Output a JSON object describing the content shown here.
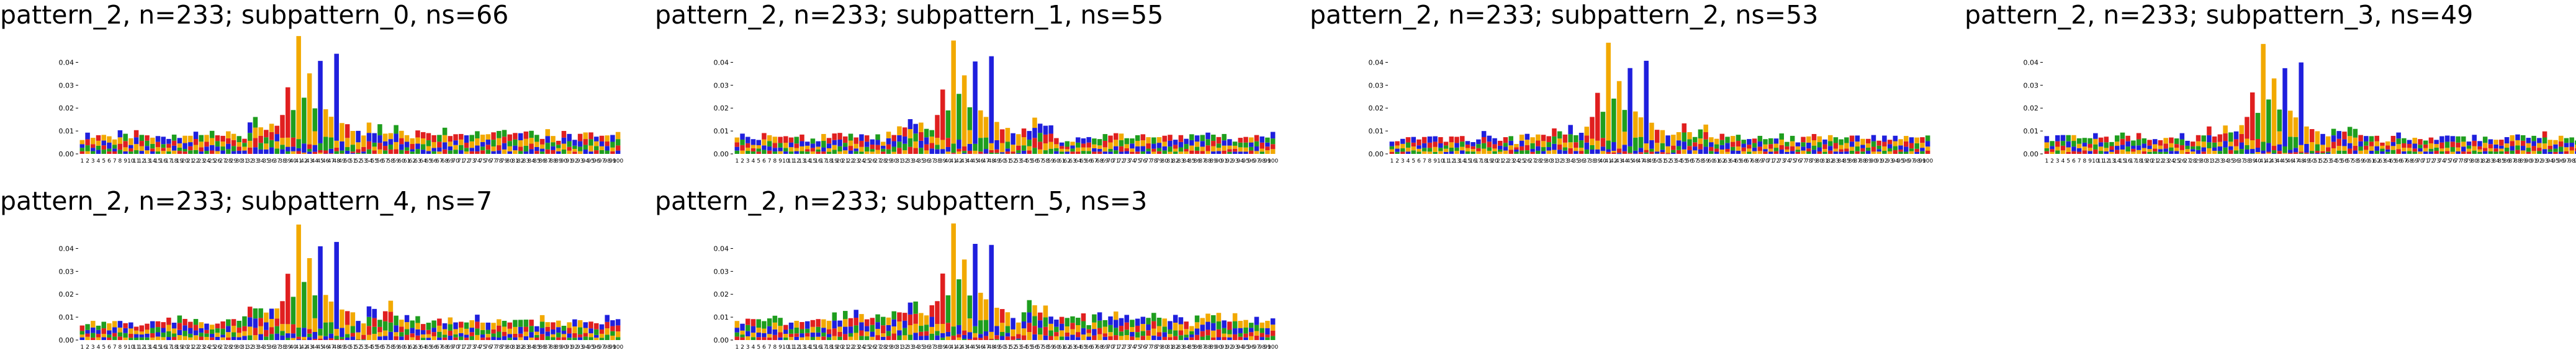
{
  "colors": {
    "A": "#1e9e1e",
    "C": "#1f1fdd",
    "G": "#f2a900",
    "T": "#e01f1f"
  },
  "chart_data": [
    {
      "type": "sequence-logo",
      "title": "pattern_2, n=233; subpattern_0, ns=66",
      "ylim": [
        0,
        0.045
      ],
      "yticks": [
        "0.00",
        "0.01",
        "0.02",
        "0.03",
        "0.04"
      ],
      "positions": [
        1,
        100
      ],
      "noise": 0.0065,
      "peaks_scale": 1.0,
      "seed": 11
    },
    {
      "type": "sequence-logo",
      "title": "pattern_2, n=233; subpattern_1, ns=55",
      "ylim": [
        0,
        0.045
      ],
      "yticks": [
        "0.00",
        "0.01",
        "0.02",
        "0.03",
        "0.04"
      ],
      "positions": [
        1,
        100
      ],
      "noise": 0.006,
      "peaks_scale": 1.0,
      "seed": 23
    },
    {
      "type": "sequence-logo",
      "title": "pattern_2, n=233; subpattern_2, ns=53",
      "ylim": [
        0,
        0.045
      ],
      "yticks": [
        "0.00",
        "0.01",
        "0.02",
        "0.03",
        "0.04"
      ],
      "positions": [
        1,
        100
      ],
      "noise": 0.0055,
      "peaks_scale": 0.95,
      "seed": 37
    },
    {
      "type": "sequence-logo",
      "title": "pattern_2, n=233; subpattern_3, ns=49",
      "ylim": [
        0,
        0.045
      ],
      "yticks": [
        "0.00",
        "0.01",
        "0.02",
        "0.03",
        "0.04"
      ],
      "positions": [
        1,
        100
      ],
      "noise": 0.0055,
      "peaks_scale": 0.95,
      "seed": 41
    },
    {
      "type": "sequence-logo",
      "title": "pattern_2, n=233; subpattern_4, ns=7",
      "ylim": [
        0,
        0.045
      ],
      "yticks": [
        "0.00",
        "0.01",
        "0.02",
        "0.03",
        "0.04"
      ],
      "positions": [
        1,
        100
      ],
      "noise": 0.0065,
      "peaks_scale": 1.0,
      "seed": 53
    },
    {
      "type": "sequence-logo",
      "title": "pattern_2, n=233; subpattern_5, ns=3",
      "ylim": [
        0,
        0.045
      ],
      "yticks": [
        "0.00",
        "0.01",
        "0.02",
        "0.03",
        "0.04"
      ],
      "positions": [
        1,
        100
      ],
      "noise": 0.0075,
      "peaks_scale": 1.0,
      "seed": 67
    }
  ],
  "peaks": [
    {
      "pos": 38,
      "stack": {
        "T": 0.01,
        "G": 0.003,
        "C": 0.002,
        "A": 0.002
      }
    },
    {
      "pos": 39,
      "stack": {
        "T": 0.022,
        "G": 0.004,
        "C": 0.002
      }
    },
    {
      "pos": 40,
      "stack": {
        "A": 0.012,
        "T": 0.004,
        "C": 0.002
      }
    },
    {
      "pos": 41,
      "stack": {
        "G": 0.045,
        "A": 0.004
      }
    },
    {
      "pos": 42,
      "stack": {
        "A": 0.02,
        "C": 0.004
      }
    },
    {
      "pos": 43,
      "stack": {
        "G": 0.031,
        "T": 0.002
      }
    },
    {
      "pos": 44,
      "stack": {
        "A": 0.01,
        "G": 0.006,
        "C": 0.003
      }
    },
    {
      "pos": 45,
      "stack": {
        "C": 0.036,
        "A": 0.003
      }
    },
    {
      "pos": 46,
      "stack": {
        "G": 0.012,
        "A": 0.006
      }
    },
    {
      "pos": 47,
      "stack": {
        "G": 0.009,
        "A": 0.005,
        "C": 0.002
      }
    },
    {
      "pos": 48,
      "stack": {
        "C": 0.038,
        "G": 0.003
      }
    },
    {
      "pos": 49,
      "stack": {
        "G": 0.008,
        "C": 0.004
      }
    },
    {
      "pos": 50,
      "stack": {
        "T": 0.006,
        "G": 0.004
      }
    },
    {
      "pos": 51,
      "stack": {
        "G": 0.006,
        "A": 0.003
      }
    },
    {
      "pos": 52,
      "stack": {
        "C": 0.005,
        "G": 0.003
      }
    },
    {
      "pos": 53,
      "stack": {
        "G": 0.005,
        "T": 0.002
      }
    }
  ]
}
